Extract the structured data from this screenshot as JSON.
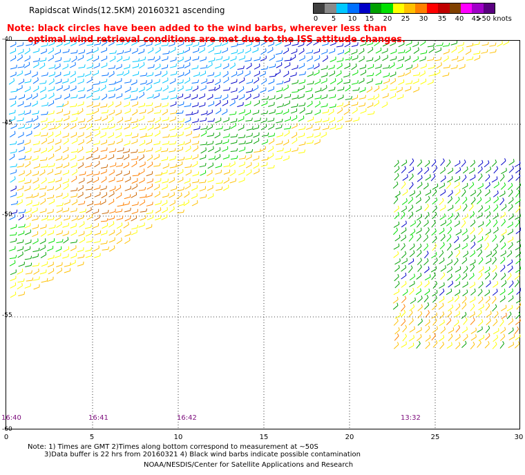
{
  "title": "Rapidscat Winds(12.5KM) 20160321 ascending",
  "note": {
    "line1": "Note: black circles have been added to the wind barbs, wherever less than",
    "line2": "optimal wind retrieval conditions are met due to the ISS attitude changes."
  },
  "legend": {
    "labels": [
      "0",
      "5",
      "10",
      "15",
      "20",
      "25",
      "30",
      "35",
      "40",
      "45",
      ">50 knots"
    ],
    "colors": [
      "#404040",
      "#8a8a8a",
      "#00c8ff",
      "#0070ff",
      "#0000c8",
      "#00a000",
      "#00e000",
      "#ffff00",
      "#ffc000",
      "#ff8000",
      "#ff0000",
      "#c00000",
      "#804000",
      "#ff00ff",
      "#a000c8",
      "#5a0080"
    ]
  },
  "lat_labels": [
    "-40",
    "-45",
    "-50",
    "-55",
    "-60"
  ],
  "lon_labels": [
    "0",
    "5",
    "10",
    "15",
    "20",
    "25",
    "30"
  ],
  "times": [
    "16:40",
    "16:41",
    "16:42",
    "13:32"
  ],
  "footer": {
    "line1": "Note: 1) Times are GMT 2)Times along bottom correspond to measurement at ~50S",
    "line2": "3)Data buffer is 22 hrs from 20160321 4) Black wind barbs indicate possible contamination",
    "line3": "NOAA/NESDIS/Center for Satellite Applications and Research"
  }
}
